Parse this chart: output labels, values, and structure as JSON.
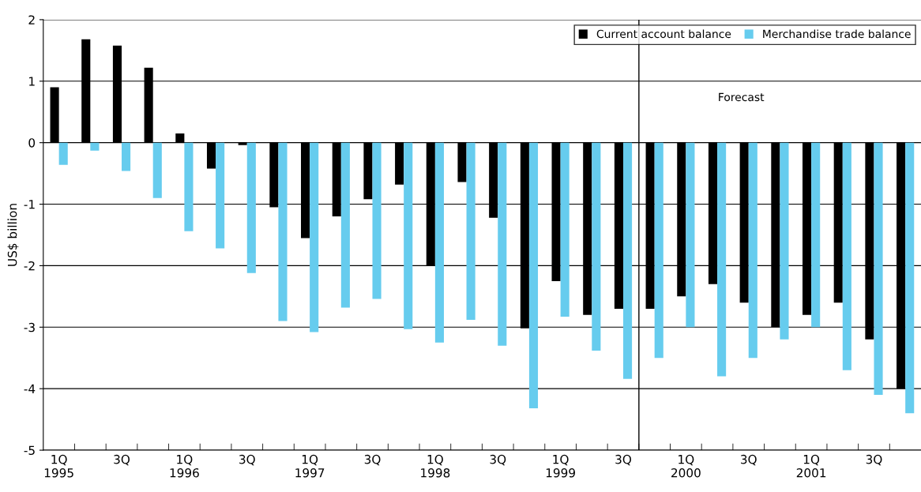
{
  "chart_data": {
    "type": "bar",
    "ylabel": "US$ billion",
    "categories": [
      "1Q\n1995",
      null,
      "3Q",
      null,
      "1Q\n1996",
      null,
      "3Q",
      null,
      "1Q\n1997",
      null,
      "3Q",
      null,
      "1Q\n1998",
      null,
      "3Q",
      null,
      "1Q\n1999",
      null,
      "3Q",
      null,
      "1Q\n2000",
      null,
      "3Q",
      null,
      "1Q\n2001",
      null,
      "3Q",
      null
    ],
    "series": [
      {
        "name": "Current account balance",
        "color": "#000000",
        "values": [
          0.9,
          1.68,
          1.58,
          1.22,
          0.15,
          -0.42,
          -0.04,
          -1.05,
          -1.55,
          -1.2,
          -0.92,
          -0.68,
          -2.0,
          -0.64,
          -1.22,
          -3.02,
          -2.25,
          -2.8,
          -2.7,
          -2.7,
          -2.5,
          -2.3,
          -2.6,
          -3.0,
          -2.8,
          -2.6,
          -3.2,
          -4.0
        ]
      },
      {
        "name": "Merchandise trade balance",
        "color": "#66ccee",
        "values": [
          -0.36,
          -0.13,
          -0.46,
          -0.9,
          -1.44,
          -1.72,
          -2.12,
          -2.9,
          -3.08,
          -2.68,
          -2.54,
          -3.03,
          -3.25,
          -2.88,
          -3.3,
          -4.32,
          -2.83,
          -3.38,
          -3.84,
          -3.5,
          -3.0,
          -3.8,
          -3.5,
          -3.2,
          -3.0,
          -3.7,
          -4.1,
          -4.4
        ]
      }
    ],
    "ylim": [
      -5,
      2
    ],
    "yticks": [
      -5,
      -4,
      -3,
      -2,
      -1,
      0,
      1,
      2
    ],
    "grid": "y",
    "legend": "top right",
    "annotations": [
      "Forecast"
    ]
  }
}
